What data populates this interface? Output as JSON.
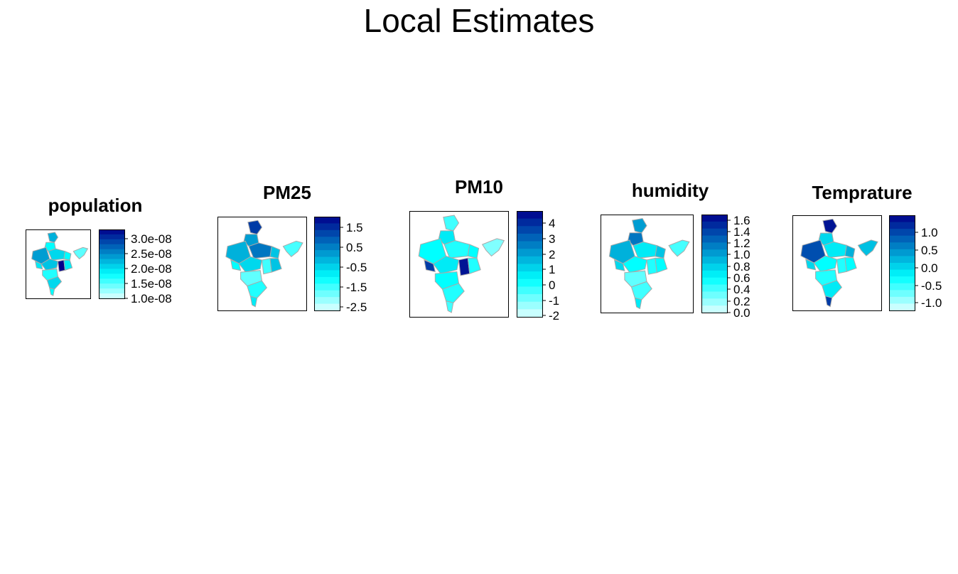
{
  "title": "Local Estimates",
  "colors": {
    "low": "#e0ffff",
    "mid": "#00ffff",
    "high": "#00008b",
    "boundary": "#a9a9a9",
    "frame": "#000000"
  },
  "panels": [
    {
      "title": "population",
      "ticks": [
        "3.0e-08",
        "2.5e-08",
        "2.0e-08",
        "1.5e-08",
        "1.0e-08"
      ],
      "range": [
        9e-09,
        3.3e-08
      ]
    },
    {
      "title": "PM25",
      "ticks": [
        "1.5",
        "0.5",
        "-0.5",
        "-1.5",
        "-2.5"
      ],
      "range": [
        -2.8,
        2.0
      ]
    },
    {
      "title": "PM10",
      "ticks": [
        "4",
        "3",
        "2",
        "1",
        "0",
        "-1",
        "-2"
      ],
      "range": [
        -2.1,
        4.8
      ]
    },
    {
      "title": "humidity",
      "ticks": [
        "1.6",
        "1.4",
        "1.2",
        "1.0",
        "0.8",
        "0.6",
        "0.4",
        "0.2",
        "0.0"
      ],
      "range": [
        0.0,
        1.7
      ]
    },
    {
      "title": "Temprature",
      "ticks": [
        "1.0",
        "0.5",
        "0.0",
        "-0.5",
        "-1.0"
      ],
      "range": [
        -1.2,
        1.45
      ]
    }
  ]
}
